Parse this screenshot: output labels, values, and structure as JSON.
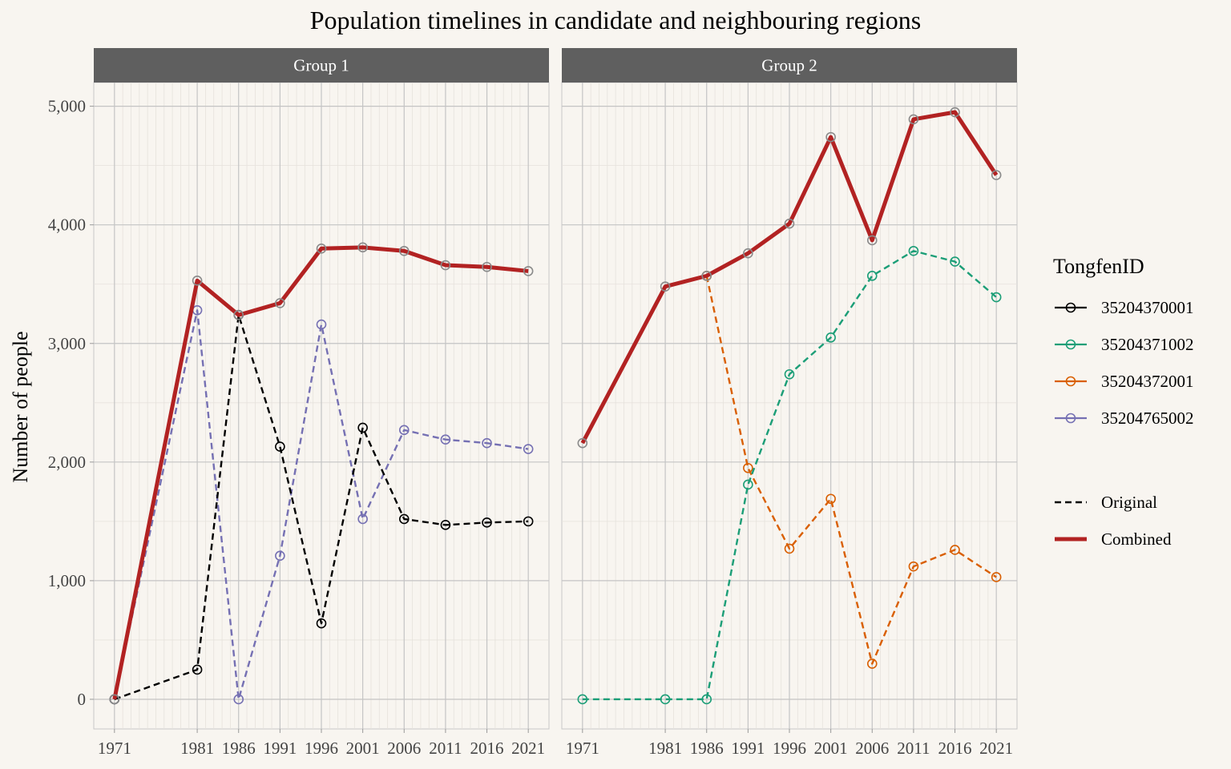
{
  "chart_data": {
    "type": "line",
    "title": "Population timelines in candidate and neighbouring regions",
    "ylabel": "Number of people",
    "xlabel": "",
    "x": [
      1971,
      1981,
      1986,
      1991,
      1996,
      2001,
      2006,
      2011,
      2016,
      2021
    ],
    "x_tick_labels": [
      "1971",
      "1981",
      "1986",
      "1991",
      "1996",
      "2001",
      "2006",
      "2011",
      "2016",
      "2021"
    ],
    "xlim": [
      1968.5,
      2023.5
    ],
    "ylim": [
      -250,
      5200
    ],
    "y_ticks": [
      0,
      1000,
      2000,
      3000,
      4000,
      5000
    ],
    "y_tick_labels": [
      "0",
      "1,000",
      "2,000",
      "3,000",
      "4,000",
      "5,000"
    ],
    "grid": true,
    "legend": {
      "placement": "right",
      "title": "TongfenID",
      "ids": [
        {
          "label": "35204370001",
          "color": "#000000"
        },
        {
          "label": "35204371002",
          "color": "#1b9e77"
        },
        {
          "label": "35204372001",
          "color": "#d95f02"
        },
        {
          "label": "35204765002",
          "color": "#7570b3"
        }
      ],
      "line_types": [
        {
          "label": "Original",
          "style": "dashed",
          "color": "#000000"
        },
        {
          "label": "Combined",
          "style": "solid",
          "color": "#b22222"
        }
      ]
    },
    "panels": [
      {
        "title": "Group 1",
        "series": [
          {
            "name": "35204765002",
            "color": "#7570b3",
            "style": "dashed",
            "values": [
              0,
              3280,
              0,
              1210,
              3160,
              1520,
              2270,
              2190,
              2160,
              2110
            ]
          },
          {
            "name": "35204370001",
            "color": "#000000",
            "style": "dashed",
            "values": [
              0,
              250,
              3240,
              2130,
              640,
              2290,
              1520,
              1470,
              1490,
              1500
            ]
          },
          {
            "name": "Combined",
            "color": "#b22222",
            "style": "solid",
            "values": [
              0,
              3530,
              3240,
              3340,
              3800,
              3810,
              3780,
              3660,
              3645,
              3610
            ]
          }
        ]
      },
      {
        "title": "Group 2",
        "series": [
          {
            "name": "35204372001",
            "color": "#d95f02",
            "style": "dashed",
            "values": [
              null,
              null,
              3570,
              1950,
              1270,
              1690,
              300,
              1120,
              1260,
              1030
            ]
          },
          {
            "name": "35204371002",
            "color": "#1b9e77",
            "style": "dashed",
            "values": [
              0,
              0,
              0,
              1810,
              2740,
              3050,
              3570,
              3780,
              3690,
              3390
            ]
          },
          {
            "name": "Combined",
            "color": "#b22222",
            "style": "solid",
            "values": [
              2160,
              3480,
              3570,
              3760,
              4010,
              4740,
              3870,
              4890,
              4950,
              4420
            ]
          }
        ]
      }
    ]
  }
}
